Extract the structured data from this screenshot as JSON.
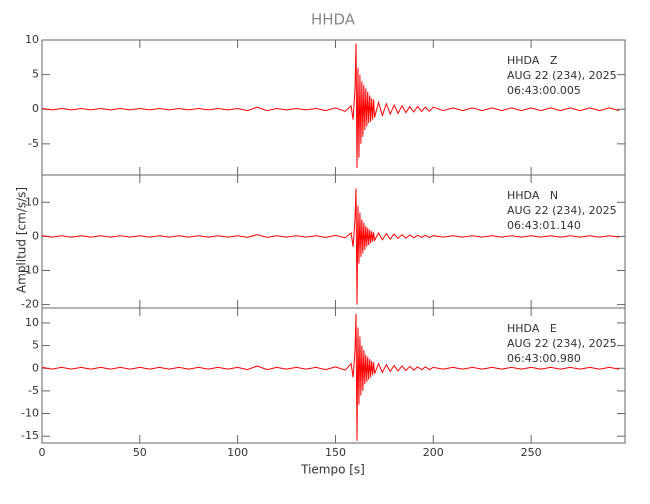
{
  "figure": {
    "title": "HHDA",
    "xlabel": "Tiempo [s]",
    "ylabel": "Amplitud [cm/s/s]",
    "xlim": [
      0,
      298
    ],
    "xticks": [
      0,
      50,
      100,
      150,
      200,
      250
    ],
    "x": [
      0,
      5,
      10,
      15,
      20,
      25,
      30,
      35,
      40,
      45,
      50,
      55,
      60,
      65,
      70,
      75,
      80,
      85,
      90,
      95,
      100,
      105,
      110,
      115,
      120,
      125,
      130,
      135,
      140,
      145,
      150,
      155,
      158,
      159,
      160,
      160.5,
      161,
      161.5,
      162,
      162.5,
      163,
      163.5,
      164,
      164.5,
      165,
      165.5,
      166,
      166.5,
      167,
      167.5,
      168,
      168.5,
      169,
      169.5,
      170,
      172,
      174,
      176,
      178,
      180,
      182,
      184,
      186,
      188,
      190,
      192,
      194,
      196,
      198,
      200,
      205,
      210,
      215,
      220,
      225,
      230,
      235,
      240,
      245,
      250,
      255,
      260,
      265,
      270,
      275,
      280,
      285,
      290,
      295
    ]
  },
  "chart_data": [
    {
      "type": "line",
      "color": "#ff0000",
      "annotation": [
        "HHDA   Z",
        "AUG 22 (234), 2025",
        "06:43:00.005"
      ],
      "ylim": [
        -9.5,
        10
      ],
      "yticks": [
        -5,
        0,
        5,
        10
      ],
      "values": [
        0.1,
        -0.1,
        0.1,
        -0.1,
        0.1,
        -0.1,
        0.1,
        -0.1,
        0.1,
        -0.1,
        0.1,
        -0.1,
        0.1,
        -0.1,
        0.1,
        -0.1,
        0.1,
        -0.1,
        0.1,
        -0.1,
        0.1,
        -0.2,
        0.3,
        -0.2,
        0.1,
        -0.1,
        0.1,
        -0.1,
        0.1,
        -0.2,
        0.2,
        -0.3,
        0.5,
        -1.5,
        3,
        9.5,
        -8.5,
        6,
        -7,
        5,
        -5,
        4,
        -4,
        3.5,
        -3,
        3,
        -2.5,
        2.5,
        -2,
        2,
        -1.8,
        1.6,
        -1.5,
        1.4,
        -1.2,
        1,
        -0.9,
        0.8,
        -0.7,
        0.6,
        -0.6,
        0.5,
        -0.5,
        0.4,
        -0.4,
        0.4,
        -0.3,
        0.3,
        -0.3,
        0.3,
        -0.2,
        0.2,
        -0.2,
        0.2,
        -0.2,
        0.2,
        -0.2,
        0.2,
        -0.2,
        0.2,
        -0.2,
        0.2,
        -0.2,
        0.2,
        -0.2,
        0.2,
        -0.2,
        0.2,
        -0.2
      ]
    },
    {
      "type": "line",
      "color": "#ff0000",
      "annotation": [
        "HHDA   N",
        "AUG 22 (234), 2025",
        "06:43:01.140"
      ],
      "ylim": [
        -21,
        18
      ],
      "yticks": [
        -20,
        -10,
        0,
        10
      ],
      "values": [
        0.2,
        -0.2,
        0.2,
        -0.2,
        0.2,
        -0.2,
        0.2,
        -0.2,
        0.2,
        -0.2,
        0.2,
        -0.2,
        0.2,
        -0.2,
        0.2,
        -0.2,
        0.2,
        -0.2,
        0.2,
        -0.2,
        0.2,
        -0.3,
        0.5,
        -0.3,
        0.2,
        -0.2,
        0.2,
        -0.2,
        0.2,
        -0.3,
        0.3,
        -0.4,
        1,
        -3,
        5,
        14,
        -20,
        9,
        -8,
        7,
        -6,
        5,
        -5,
        4,
        -4,
        3,
        -3,
        2.5,
        -2.5,
        2,
        -2,
        1.5,
        -1.5,
        1.2,
        -1.2,
        1,
        -1,
        0.8,
        -0.8,
        0.7,
        -0.6,
        0.5,
        -0.5,
        0.4,
        -0.4,
        0.3,
        -0.3,
        0.3,
        -0.3,
        0.2,
        -0.2,
        0.2,
        -0.2,
        0.2,
        -0.2,
        0.2,
        -0.2,
        0.2,
        -0.2,
        0.2,
        -0.2,
        0.2,
        -0.2,
        0.2,
        -0.2,
        0.2,
        -0.2,
        0.2,
        -0.2
      ]
    },
    {
      "type": "line",
      "color": "#ff0000",
      "annotation": [
        "HHDA   E",
        "AUG 22 (234), 2025",
        "06:43:00.980"
      ],
      "ylim": [
        -16.5,
        13.3
      ],
      "yticks": [
        -15,
        -10,
        -5,
        0,
        5,
        10
      ],
      "values": [
        0.2,
        -0.2,
        0.2,
        -0.2,
        0.2,
        -0.2,
        0.2,
        -0.2,
        0.2,
        -0.2,
        0.2,
        -0.2,
        0.2,
        -0.2,
        0.2,
        -0.2,
        0.2,
        -0.2,
        0.2,
        -0.2,
        0.2,
        -0.3,
        0.5,
        -0.3,
        0.2,
        -0.2,
        0.2,
        -0.2,
        0.2,
        -0.3,
        0.3,
        -0.4,
        1,
        -2,
        4,
        12,
        -16,
        9,
        -8,
        7,
        -6,
        5,
        -5,
        4,
        -3.5,
        3,
        -3,
        2.5,
        -2.5,
        2,
        -2,
        1.6,
        -1.5,
        1.3,
        -1.2,
        1,
        -0.9,
        0.8,
        -0.7,
        0.6,
        -0.6,
        0.5,
        -0.5,
        0.4,
        -0.4,
        0.3,
        -0.3,
        0.3,
        -0.3,
        0.2,
        -0.2,
        0.2,
        -0.2,
        0.2,
        -0.2,
        0.2,
        -0.2,
        0.2,
        -0.2,
        0.2,
        -0.2,
        0.2,
        -0.2,
        0.2,
        -0.2,
        0.2,
        -0.2,
        0.2,
        -0.2
      ]
    }
  ]
}
